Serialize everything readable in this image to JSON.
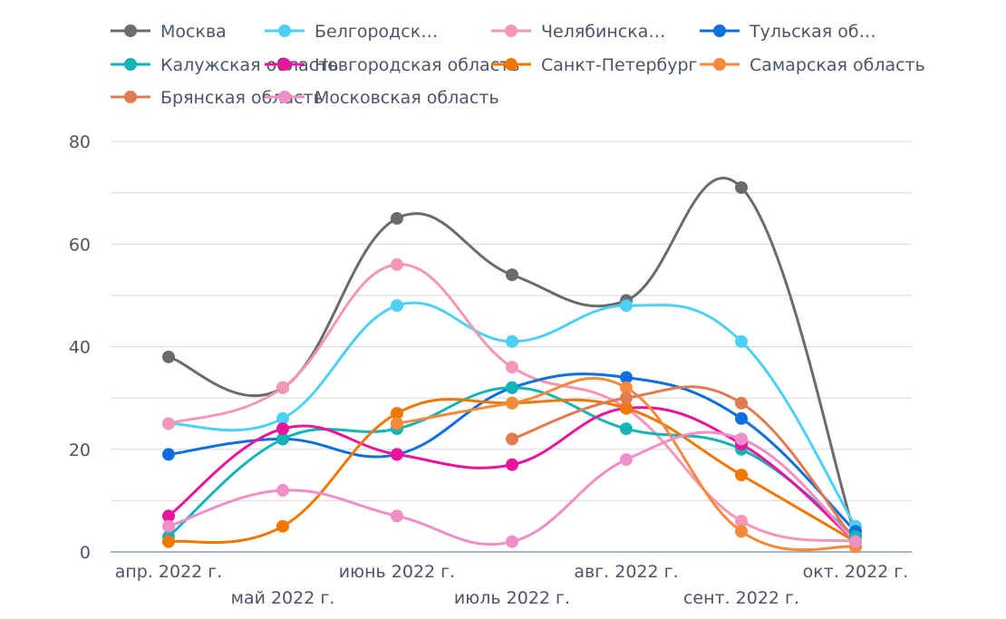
{
  "chart_data": {
    "type": "line",
    "categories": [
      "апр. 2022 г.",
      "май 2022 г.",
      "июнь 2022 г.",
      "июль 2022 г.",
      "авг. 2022 г.",
      "сент. 2022 г.",
      "окт. 2022 г."
    ],
    "ylim": [
      0,
      80
    ],
    "yticks": [
      "0",
      "20",
      "40",
      "60",
      "80"
    ],
    "grid": true,
    "smooth": true,
    "legend_position": "top",
    "series": [
      {
        "name": "Москва",
        "legend_label": "Москва",
        "color": "#6b6b6b",
        "values": [
          38,
          32,
          65,
          54,
          49,
          71,
          3
        ]
      },
      {
        "name": "Белгородская область",
        "legend_label": "Белгородск…",
        "color": "#4dd0f5",
        "values": [
          25,
          26,
          48,
          41,
          48,
          41,
          5
        ]
      },
      {
        "name": "Челябинская область",
        "legend_label": "Челябинска…",
        "color": "#f497b7",
        "values": [
          25,
          32,
          56,
          36,
          28,
          6,
          2
        ]
      },
      {
        "name": "Тульская область",
        "legend_label": "Тульская об…",
        "color": "#0f6fde",
        "values": [
          19,
          22,
          19,
          32,
          34,
          26,
          4
        ]
      },
      {
        "name": "Калужская область",
        "legend_label": "Калужская область",
        "color": "#14b3b8",
        "values": [
          3,
          22,
          24,
          32,
          24,
          20,
          3
        ]
      },
      {
        "name": "Новгородская область",
        "legend_label": "Новгородская область",
        "color": "#e8159c",
        "values": [
          7,
          24,
          19,
          17,
          28,
          21,
          2
        ]
      },
      {
        "name": "Санкт-Петербург",
        "legend_label": "Санкт-Петербург",
        "color": "#f07800",
        "values": [
          2,
          5,
          27,
          29,
          28,
          15,
          2
        ]
      },
      {
        "name": "Самарская область",
        "legend_label": "Самарская область",
        "color": "#f58a3d",
        "values": [
          null,
          null,
          25,
          29,
          32,
          4,
          1
        ]
      },
      {
        "name": "Брянская область",
        "legend_label": "Брянская область",
        "color": "#e07b52",
        "values": [
          null,
          null,
          null,
          22,
          30,
          29,
          2
        ]
      },
      {
        "name": "Московская область",
        "legend_label": "Московская область",
        "color": "#ef8fc8",
        "values": [
          5,
          12,
          7,
          2,
          18,
          22,
          2
        ]
      }
    ]
  }
}
